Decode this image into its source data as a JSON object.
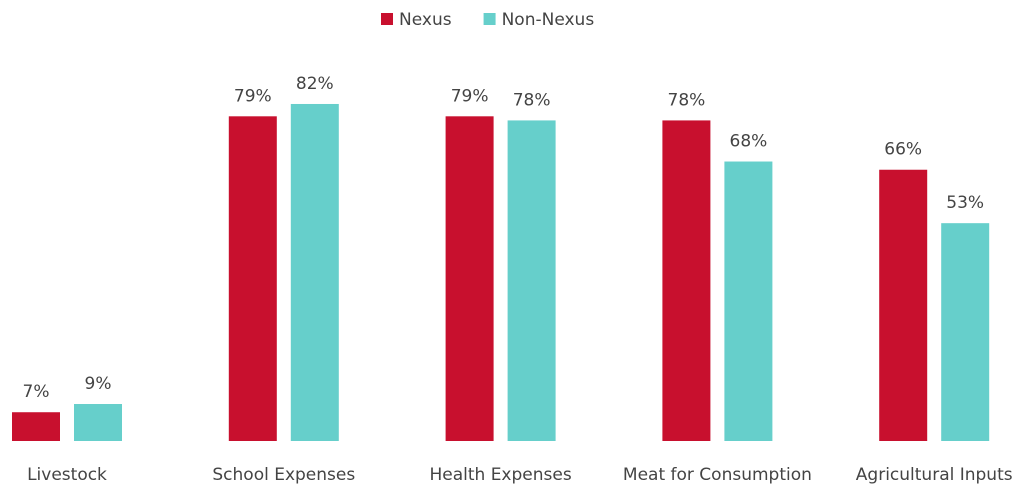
{
  "chart_data": {
    "type": "bar",
    "categories": [
      "Livestock",
      "School Expenses",
      "Health Expenses",
      "Meat for Consumption",
      "Agricultural Inputs"
    ],
    "series": [
      {
        "name": "Nexus",
        "color": "#c8102e",
        "values": [
          7,
          79,
          79,
          78,
          66
        ],
        "value_labels": [
          "7%",
          "79%",
          "79%",
          "78%",
          "66%"
        ]
      },
      {
        "name": "Non-Nexus",
        "color": "#66cfcb",
        "values": [
          9,
          82,
          78,
          68,
          53
        ],
        "value_labels": [
          "9%",
          "82%",
          "78%",
          "68%",
          "53%"
        ]
      }
    ],
    "legend": "top"
  }
}
